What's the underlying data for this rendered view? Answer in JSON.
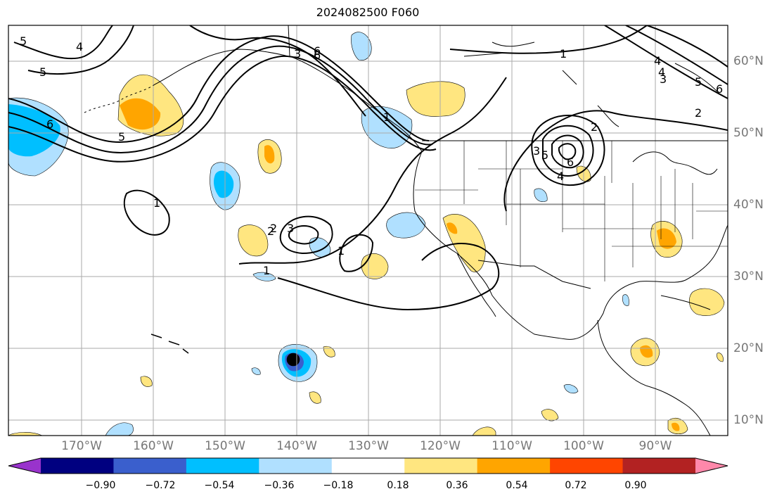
{
  "title": "2024082500 F060",
  "lon_labels": [
    "170°W",
    "160°W",
    "150°W",
    "140°W",
    "130°W",
    "120°W",
    "110°W",
    "100°W",
    "90°W"
  ],
  "lat_labels": [
    "60°N",
    "50°N",
    "40°N",
    "30°N",
    "20°N",
    "10°N"
  ],
  "colorbar": {
    "ticks": [
      "−0.90",
      "−0.72",
      "−0.54",
      "−0.36",
      "−0.18",
      "0.18",
      "0.36",
      "0.54",
      "0.72",
      "0.90"
    ],
    "colors": [
      "#9933cc",
      "#000080",
      "#3a5fcd",
      "#00bfff",
      "#b0e0ff",
      "#ffffff",
      "#ffe680",
      "#ffa500",
      "#ff4500",
      "#b22222",
      "#ff88aa"
    ]
  },
  "contour_labels": [
    "5",
    "4",
    "5",
    "6",
    "5",
    "6",
    "3",
    "6",
    "4",
    "2",
    "1",
    "1",
    "5",
    "3",
    "6",
    "4",
    "2",
    "5",
    "4",
    "3",
    "6",
    "2",
    "1",
    "2",
    "3",
    "1",
    "1"
  ],
  "colors": {
    "land_line": "#000000",
    "grid": "#aaaaaa",
    "contour": "#000000"
  }
}
